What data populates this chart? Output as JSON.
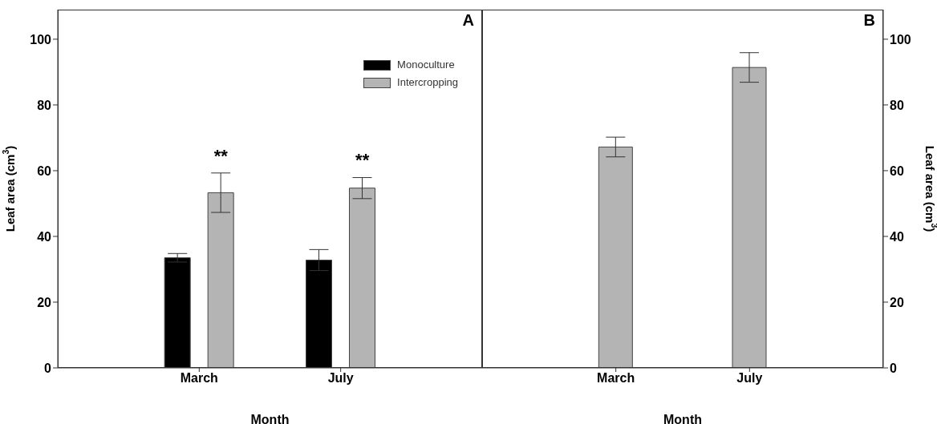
{
  "chart_data": [
    {
      "type": "bar",
      "title": "A",
      "xlabel": "Month",
      "ylabel": "Leaf area (cm$^{3}$)",
      "categories": [
        "March",
        "July"
      ],
      "series": [
        {
          "name": "Monoculture",
          "color": "#000000",
          "values": [
            33.5,
            32.8
          ],
          "errors": [
            1.3,
            3.2
          ]
        },
        {
          "name": "Intercropping",
          "color": "#b4b4b4",
          "values": [
            53.3,
            54.7
          ],
          "errors": [
            6,
            3.2
          ]
        }
      ],
      "ylim": [
        0,
        109
      ],
      "yticks": [
        0,
        20,
        40,
        60,
        80,
        100
      ],
      "legend": "top right",
      "annotations": [
        "**",
        "**"
      ]
    },
    {
      "type": "bar",
      "title": "B",
      "xlabel": "Month",
      "y2label": "Leaf area (cm$^{3}$)",
      "categories": [
        "March",
        "July"
      ],
      "series": [
        {
          "color": "#b4b4b4",
          "values": [
            67.2,
            91.4
          ],
          "errors": [
            3,
            4.5
          ],
          "axis": "y2"
        }
      ],
      "y2lim": [
        0,
        109
      ],
      "y2ticks": [
        0,
        20,
        40,
        60,
        80,
        100
      ]
    }
  ]
}
